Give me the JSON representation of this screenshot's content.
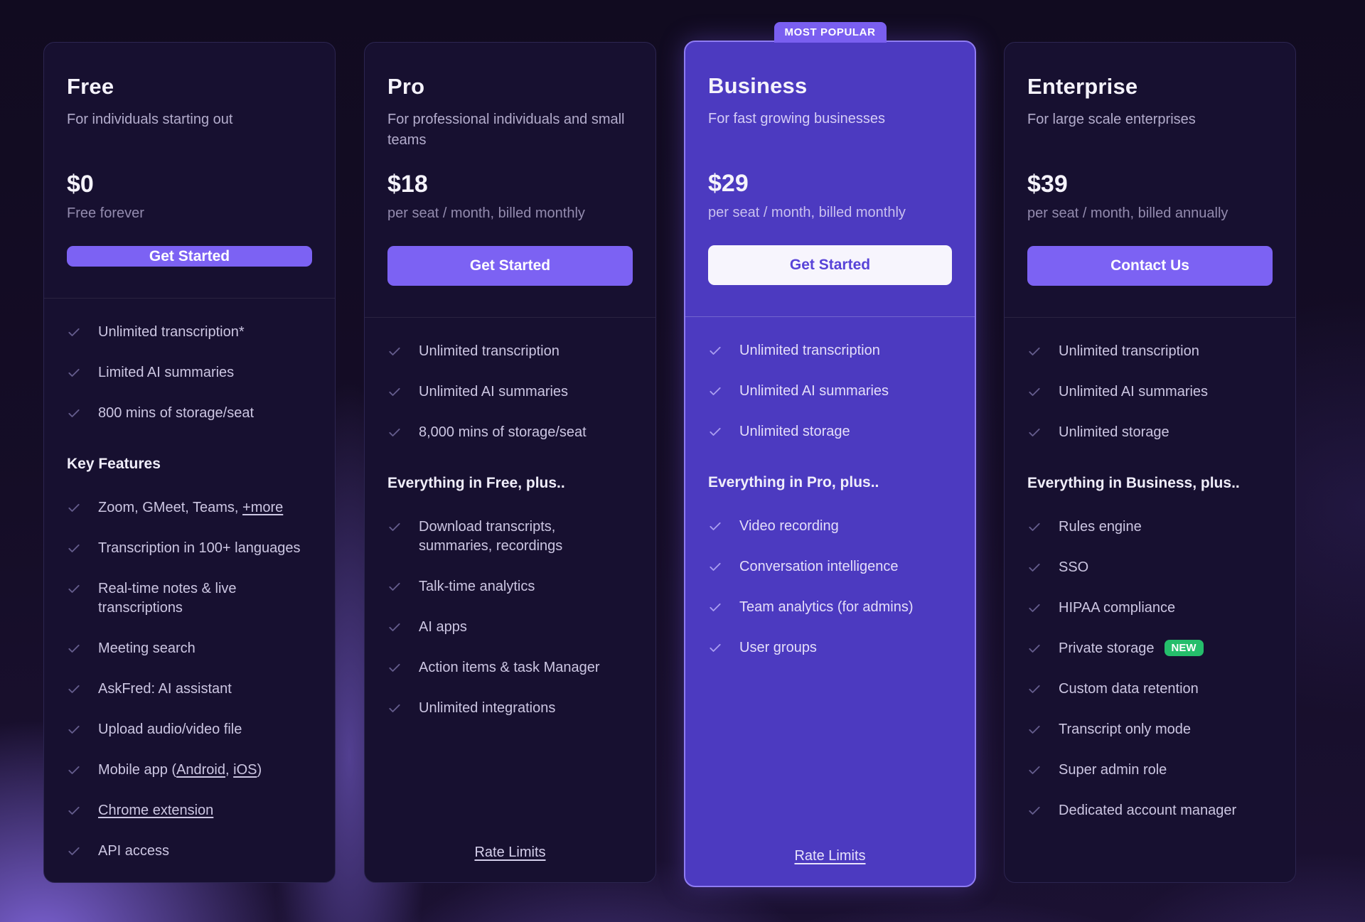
{
  "colors": {
    "accent": "#7C62F3",
    "highlight_card": "#4C3AC0",
    "highlight_border": "#8F7CF3",
    "new_badge_green": "#25BE6B",
    "page_background": "#130C24"
  },
  "plans": [
    {
      "name": "Free",
      "description": "For individuals starting out",
      "price": "$0",
      "price_note": "Free forever",
      "cta": "Get Started",
      "base_features": [
        [
          {
            "t": "Unlimited transcription*"
          }
        ],
        [
          {
            "t": "Limited AI summaries"
          }
        ],
        [
          {
            "t": "800 mins of storage/seat"
          }
        ]
      ],
      "section_heading": "Key Features",
      "extra_features": [
        [
          {
            "t": "Zoom, GMeet, Teams, "
          },
          {
            "t": "+more",
            "link": true
          }
        ],
        [
          {
            "t": "Transcription in 100+ languages"
          }
        ],
        [
          {
            "t": "Real-time notes & live transcriptions"
          }
        ],
        [
          {
            "t": "Meeting search"
          }
        ],
        [
          {
            "t": "AskFred: AI assistant"
          }
        ],
        [
          {
            "t": "Upload audio/video file"
          }
        ],
        [
          {
            "t": "Mobile app ("
          },
          {
            "t": "Android",
            "link": true
          },
          {
            "t": ", "
          },
          {
            "t": "iOS",
            "link": true
          },
          {
            "t": ")"
          }
        ],
        [
          {
            "t": "Chrome extension",
            "link": true
          }
        ],
        [
          {
            "t": "API access"
          }
        ]
      ],
      "footer_link": ""
    },
    {
      "name": "Pro",
      "description": "For professional individuals and small teams",
      "price": "$18",
      "price_note": "per seat / month, billed monthly",
      "cta": "Get Started",
      "base_features": [
        [
          {
            "t": "Unlimited transcription"
          }
        ],
        [
          {
            "t": "Unlimited AI summaries"
          }
        ],
        [
          {
            "t": "8,000 mins of storage/seat"
          }
        ]
      ],
      "section_heading": "Everything in Free, plus..",
      "extra_features": [
        [
          {
            "t": "Download transcripts, summaries, recordings"
          }
        ],
        [
          {
            "t": "Talk-time analytics"
          }
        ],
        [
          {
            "t": "AI apps"
          }
        ],
        [
          {
            "t": "Action items & task Manager"
          }
        ],
        [
          {
            "t": "Unlimited integrations"
          }
        ]
      ],
      "footer_link": "Rate Limits"
    },
    {
      "name": "Business",
      "badge": "MOST POPULAR",
      "description": "For fast growing businesses",
      "price": "$29",
      "price_note": "per seat / month, billed monthly",
      "cta": "Get Started",
      "base_features": [
        [
          {
            "t": "Unlimited transcription"
          }
        ],
        [
          {
            "t": "Unlimited AI summaries"
          }
        ],
        [
          {
            "t": "Unlimited storage"
          }
        ]
      ],
      "section_heading": "Everything in Pro, plus..",
      "extra_features": [
        [
          {
            "t": "Video recording"
          }
        ],
        [
          {
            "t": "Conversation intelligence"
          }
        ],
        [
          {
            "t": "Team analytics (for admins)"
          }
        ],
        [
          {
            "t": "User groups"
          }
        ]
      ],
      "footer_link": "Rate Limits"
    },
    {
      "name": "Enterprise",
      "description": "For large scale enterprises",
      "price": "$39",
      "price_note": "per seat / month, billed annually",
      "cta": "Contact Us",
      "base_features": [
        [
          {
            "t": "Unlimited transcription"
          }
        ],
        [
          {
            "t": "Unlimited AI summaries"
          }
        ],
        [
          {
            "t": "Unlimited storage"
          }
        ]
      ],
      "section_heading": "Everything in Business, plus..",
      "extra_features": [
        [
          {
            "t": "Rules engine"
          }
        ],
        [
          {
            "t": "SSO"
          }
        ],
        [
          {
            "t": "HIPAA compliance"
          }
        ],
        [
          {
            "t": "Private storage"
          },
          {
            "t": "NEW",
            "badge": true
          }
        ],
        [
          {
            "t": "Custom data retention"
          }
        ],
        [
          {
            "t": "Transcript only mode"
          }
        ],
        [
          {
            "t": "Super admin role"
          }
        ],
        [
          {
            "t": "Dedicated account manager"
          }
        ]
      ],
      "footer_link": ""
    }
  ]
}
